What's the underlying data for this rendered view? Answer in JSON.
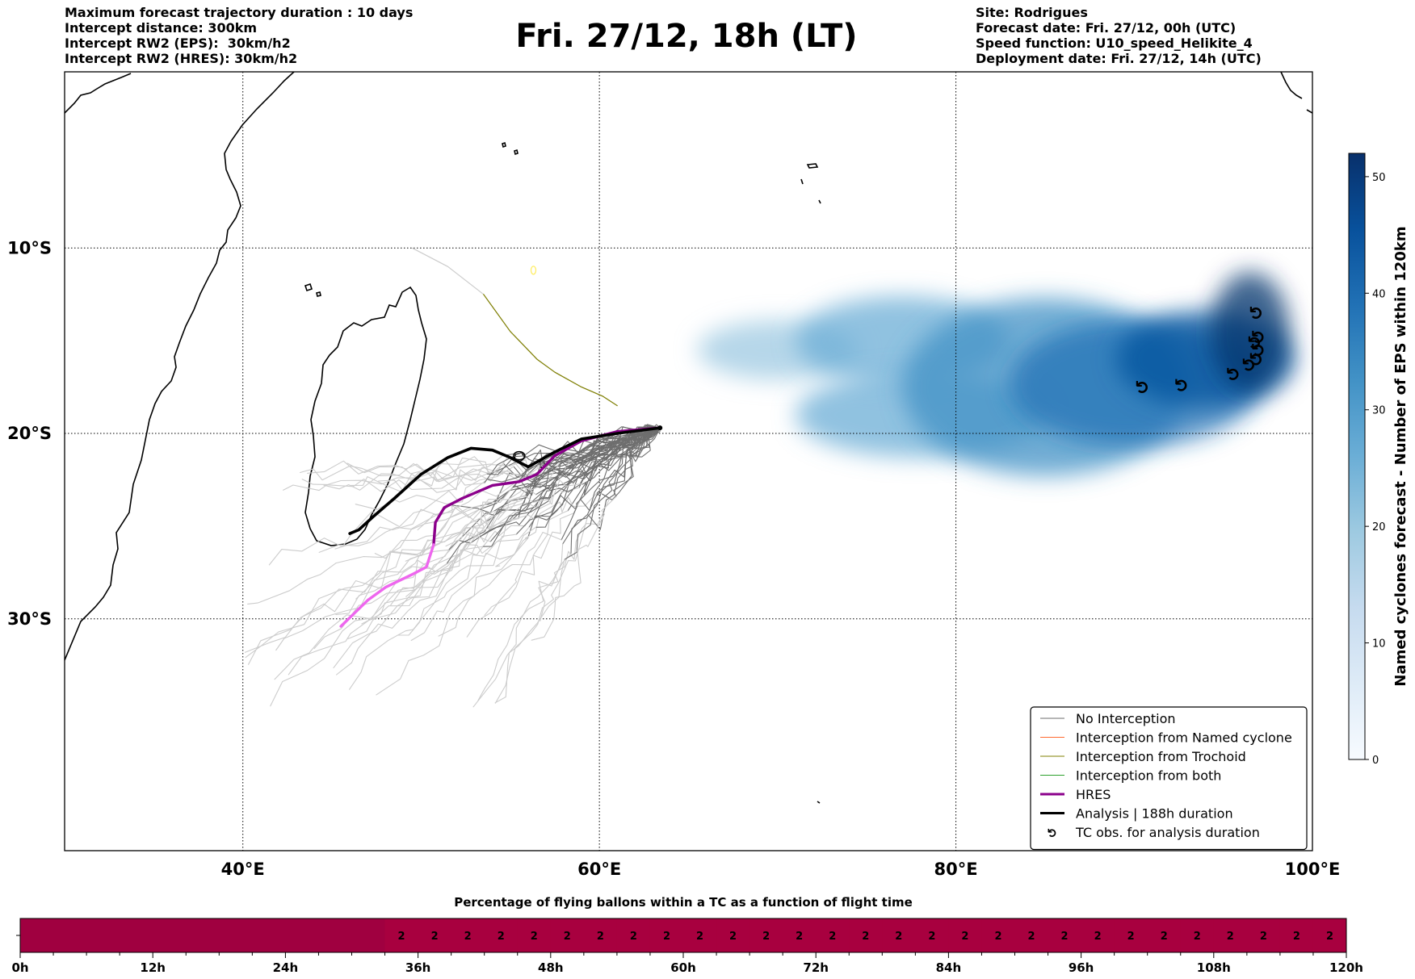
{
  "header": {
    "title": "Fri. 27/12, 18h (LT)",
    "left_lines": [
      "Maximum forecast trajectory duration : 10 days",
      "Intercept distance: 300km",
      "Intercept RW2 (EPS):  30km/h2",
      "Intercept RW2 (HRES): 30km/h2"
    ],
    "right_lines": [
      "Site: Rodrigues",
      "Forecast date: Fri. 27/12, 00h (UTC)",
      "Speed function: U10_speed_Helikite_4",
      "Deployment date: Fri. 27/12, 14h (UTC)"
    ]
  },
  "colors": {
    "no_interception": "#6e6e6e",
    "named_cyclone": "#ff6a30",
    "trochoid": "#808000",
    "both": "#2ca02c",
    "hres": "#8b008b",
    "hres_late": "#ee66ee",
    "analysis": "#000000",
    "late_ensemble": "#cccccc",
    "bar_fill": "#a50040",
    "blues": [
      "#f7fbff",
      "#deebf7",
      "#c6dbef",
      "#9ecae1",
      "#6baed6",
      "#4292c6",
      "#2171b5",
      "#08519c",
      "#08306b"
    ]
  },
  "chart_data": [
    {
      "type": "map",
      "name_note": "trajectory map",
      "x_ticks": [
        "40°E",
        "60°E",
        "80°E",
        "100°E"
      ],
      "x_tick_values": [
        40,
        60,
        80,
        100
      ],
      "y_ticks": [
        "10°S",
        "20°S",
        "30°S"
      ],
      "y_tick_values": [
        -10,
        -20,
        -30
      ],
      "xlim": [
        30,
        100
      ],
      "ylim": [
        -42.5,
        -0.5
      ],
      "grid": true,
      "legend_position": "lower-right",
      "legend": [
        {
          "label": "No Interception",
          "style": "line",
          "color_key": "no_interception",
          "width": 1
        },
        {
          "label": "Interception from Named cyclone",
          "style": "line",
          "color_key": "named_cyclone",
          "width": 1
        },
        {
          "label": "Interception from Trochoid",
          "style": "line",
          "color_key": "trochoid",
          "width": 1
        },
        {
          "label": "Interception from both",
          "style": "line",
          "color_key": "both",
          "width": 1
        },
        {
          "label": "HRES",
          "style": "line",
          "color_key": "hres",
          "width": 3
        },
        {
          "label": "Analysis | 188h duration",
          "style": "line",
          "color_key": "analysis",
          "width": 3
        },
        {
          "label": "TC obs. for analysis duration",
          "style": "cyclone-icon",
          "color_key": "analysis"
        }
      ],
      "deployment_site": {
        "lon": 63.4,
        "lat": -19.7
      },
      "analysis_track": [
        [
          63.4,
          -19.7
        ],
        [
          61,
          -20
        ],
        [
          59,
          -20.3
        ],
        [
          57.5,
          -21
        ],
        [
          56,
          -21.8
        ],
        [
          55,
          -21.3
        ],
        [
          54,
          -20.9
        ],
        [
          52.8,
          -20.8
        ],
        [
          51.5,
          -21.3
        ],
        [
          50,
          -22.2
        ],
        [
          48.5,
          -23.5
        ],
        [
          47.3,
          -24.5
        ],
        [
          46.5,
          -25.2
        ],
        [
          46,
          -25.4
        ]
      ],
      "hres_track": [
        [
          63.4,
          -19.7
        ],
        [
          61,
          -19.9
        ],
        [
          59,
          -20.4
        ],
        [
          57.5,
          -21.2
        ],
        [
          56.5,
          -22.2
        ],
        [
          55.5,
          -22.6
        ],
        [
          54,
          -22.8
        ],
        [
          52.3,
          -23.5
        ],
        [
          51.3,
          -24
        ],
        [
          50.8,
          -24.8
        ],
        [
          50.7,
          -26
        ],
        [
          50.3,
          -27.2
        ],
        [
          49.5,
          -27.6
        ],
        [
          48,
          -28.3
        ],
        [
          47,
          -29
        ],
        [
          45.5,
          -30.4
        ]
      ],
      "hres_late_from_index": 10,
      "trochoid_track": [
        [
          49.5,
          -10
        ],
        [
          51.5,
          -11
        ],
        [
          53.5,
          -12.5
        ],
        [
          55,
          -14.5
        ],
        [
          56.5,
          -16
        ],
        [
          57.5,
          -16.7
        ],
        [
          59,
          -17.5
        ],
        [
          60.2,
          -18
        ],
        [
          61,
          -18.5
        ]
      ],
      "cyclone_obs": [
        [
          90.5,
          -17.5
        ],
        [
          92.7,
          -17.4
        ],
        [
          95.6,
          -16.8
        ],
        [
          96.5,
          -16.3
        ],
        [
          96.9,
          -16
        ],
        [
          97,
          -15.5
        ],
        [
          96.8,
          -15.1
        ],
        [
          97,
          -14.8
        ],
        [
          96.9,
          -13.5
        ]
      ],
      "density_colorbar": {
        "label": "Named cyclones forecast - Number of EPS within 120km",
        "ticks": [
          0,
          10,
          20,
          30,
          40,
          50
        ],
        "range": [
          0,
          52
        ]
      },
      "density_blobs": [
        {
          "lon": 70,
          "lat": -15.5,
          "rx": 4.5,
          "ry": 1.6,
          "level": 3
        },
        {
          "lon": 77,
          "lat": -15.0,
          "rx": 6,
          "ry": 2.4,
          "level": 4
        },
        {
          "lon": 78,
          "lat": -19.0,
          "rx": 7,
          "ry": 2.3,
          "level": 4
        },
        {
          "lon": 85,
          "lat": -17.5,
          "rx": 8,
          "ry": 4.8,
          "level": 5
        },
        {
          "lon": 90,
          "lat": -17.3,
          "rx": 7,
          "ry": 3.4,
          "level": 6
        },
        {
          "lon": 94,
          "lat": -16.0,
          "rx": 5,
          "ry": 2.6,
          "level": 7
        },
        {
          "lon": 96.5,
          "lat": -14.5,
          "rx": 2.2,
          "ry": 3.2,
          "level": 8
        }
      ]
    },
    {
      "type": "bar",
      "title": "Percentage of flying ballons within a TC as a function of flight time",
      "x_tick_labels": [
        "0h",
        "12h",
        "24h",
        "36h",
        "48h",
        "60h",
        "72h",
        "84h",
        "96h",
        "108h",
        "120h"
      ],
      "x_tick_values": [
        0,
        12,
        24,
        36,
        48,
        60,
        72,
        84,
        96,
        108,
        120
      ],
      "bin_hours": 3,
      "xlim": [
        0,
        120
      ],
      "values": [
        0,
        0,
        0,
        0,
        0,
        0,
        0,
        0,
        0,
        0,
        0,
        2,
        2,
        2,
        2,
        2,
        2,
        2,
        2,
        2,
        2,
        2,
        2,
        2,
        2,
        2,
        2,
        2,
        2,
        2,
        2,
        2,
        2,
        2,
        2,
        2,
        2,
        2,
        2,
        2
      ]
    }
  ]
}
